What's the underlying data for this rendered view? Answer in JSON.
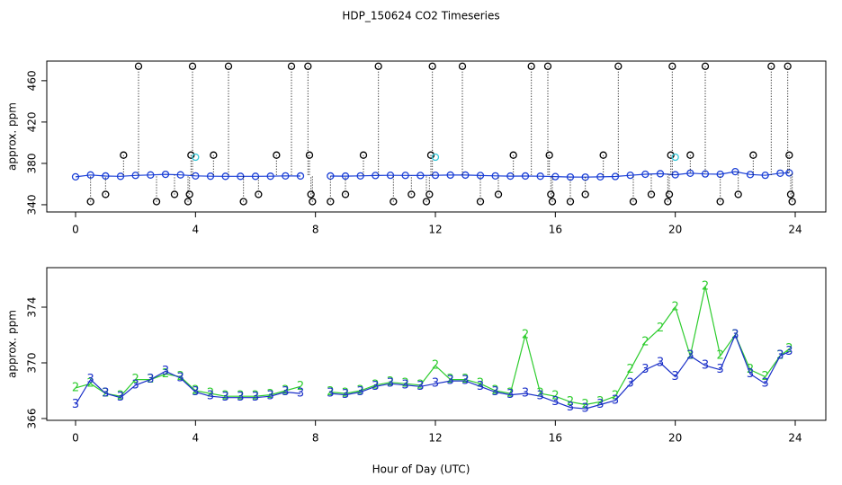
{
  "chart_data": [
    {
      "type": "scatter",
      "title": "HDP_150624  CO2 Timeseries",
      "ylabel": "approx. ppm",
      "xlim": [
        -0.96,
        25.02
      ],
      "ylim": [
        333,
        479
      ],
      "xticks": [
        0,
        4,
        8,
        12,
        16,
        20,
        24
      ],
      "yticks": [
        340,
        380,
        420,
        460
      ],
      "series": [
        {
          "color": "#1a3fd6",
          "style": "line",
          "x": [
            0,
            0.5,
            1,
            1.5,
            2,
            2.5,
            3,
            3.5,
            4,
            4.5,
            5,
            5.5,
            6,
            6.5,
            7,
            7.5,
            8,
            8.5,
            9,
            9.5,
            10,
            10.5,
            11,
            11.5,
            12,
            12.5,
            13,
            13.5,
            14,
            14.5,
            15,
            15.5,
            16,
            16.5,
            17,
            17.5,
            18,
            18.5,
            19,
            19.5,
            20,
            20.5,
            21,
            21.5,
            22,
            22.5,
            23,
            23.5,
            23.8
          ],
          "values": [
            367,
            368.8,
            367.8,
            367.5,
            368.4,
            368.8,
            369.4,
            368.9,
            367.9,
            367.6,
            367.5,
            367.5,
            367.5,
            367.6,
            367.9,
            367.8,
            null,
            367.8,
            367.7,
            367.9,
            368.3,
            368.5,
            368.4,
            368.3,
            368.5,
            368.7,
            368.7,
            368.3,
            367.9,
            367.7,
            367.8,
            367.6,
            367.2,
            366.8,
            366.7,
            367,
            367.3,
            368.5,
            369.5,
            370,
            369,
            370.5,
            369.8,
            369.5,
            372,
            369.2,
            368.5,
            370.5,
            370.8
          ]
        },
        {
          "color": "#000000",
          "style": "drop",
          "x": [
            0.5,
            1,
            1.6,
            2.1,
            2.7,
            3.3,
            3.75,
            3.8,
            3.85,
            3.9,
            4.6,
            5.1,
            5.6,
            6.1,
            6.7,
            7.2,
            7.75,
            7.8,
            7.85,
            7.9,
            8.5,
            9,
            9.6,
            10.1,
            10.6,
            11.2,
            11.7,
            11.8,
            11.85,
            11.9,
            12.9,
            13.5,
            14.1,
            14.6,
            15.2,
            15.75,
            15.8,
            15.85,
            15.9,
            16.5,
            17,
            17.6,
            18.1,
            18.6,
            19.2,
            19.75,
            19.8,
            19.85,
            19.9,
            20.5,
            21,
            21.5,
            22.1,
            22.6,
            23.2,
            23.75,
            23.8,
            23.85,
            23.9
          ],
          "values": [
            343,
            350,
            388,
            474,
            343,
            350,
            343,
            350,
            388,
            474,
            388,
            474,
            343,
            350,
            388,
            474,
            474,
            388,
            350,
            343,
            343,
            350,
            388,
            474,
            343,
            350,
            343,
            350,
            388,
            474,
            474,
            343,
            350,
            388,
            474,
            474,
            388,
            350,
            343,
            343,
            350,
            388,
            474,
            343,
            350,
            343,
            350,
            388,
            474,
            388,
            474,
            343,
            350,
            388,
            474,
            474,
            388,
            350,
            343
          ]
        },
        {
          "color": "#35c8d8",
          "style": "points",
          "x": [
            4,
            12,
            20
          ],
          "values": [
            386,
            386,
            386
          ]
        }
      ]
    },
    {
      "type": "line",
      "ylabel": "approx. ppm",
      "xlabel": "Hour of Day (UTC)",
      "xlim": [
        -0.96,
        25.02
      ],
      "ylim": [
        365.87,
        376.84
      ],
      "xticks": [
        0,
        4,
        8,
        12,
        16,
        20,
        24
      ],
      "yticks": [
        366,
        370,
        374
      ],
      "series": [
        {
          "color": "#2ecc2e",
          "marker": "2",
          "x": [
            0,
            0.5,
            1,
            1.5,
            2,
            2.5,
            3,
            3.5,
            4,
            4.5,
            5,
            5.5,
            6,
            6.5,
            7,
            7.5,
            8,
            8.5,
            9,
            9.5,
            10,
            10.5,
            11,
            11.5,
            12,
            12.5,
            13,
            13.5,
            14,
            14.5,
            15,
            15.5,
            16,
            16.5,
            17,
            17.5,
            18,
            18.5,
            19,
            19.5,
            20,
            20.5,
            21,
            21.5,
            22,
            22.5,
            23,
            23.5,
            23.8
          ],
          "values": [
            368.2,
            368.5,
            367.8,
            367.6,
            368.8,
            368.8,
            369.2,
            369,
            368,
            367.8,
            367.6,
            367.6,
            367.6,
            367.7,
            368,
            368.3,
            null,
            367.9,
            367.8,
            368,
            368.4,
            368.6,
            368.5,
            368.4,
            369.8,
            368.8,
            368.8,
            368.5,
            368,
            367.8,
            372,
            367.8,
            367.6,
            367.2,
            367,
            367.2,
            367.6,
            369.5,
            371.5,
            372.5,
            374,
            370.5,
            375.5,
            370.5,
            372,
            369.5,
            369,
            370.5,
            371
          ]
        },
        {
          "color": "#1a2fc8",
          "marker": "3",
          "x": [
            0,
            0.5,
            1,
            1.5,
            2,
            2.5,
            3,
            3.5,
            4,
            4.5,
            5,
            5.5,
            6,
            6.5,
            7,
            7.5,
            8,
            8.5,
            9,
            9.5,
            10,
            10.5,
            11,
            11.5,
            12,
            12.5,
            13,
            13.5,
            14,
            14.5,
            15,
            15.5,
            16,
            16.5,
            17,
            17.5,
            18,
            18.5,
            19,
            19.5,
            20,
            20.5,
            21,
            21.5,
            22,
            22.5,
            23,
            23.5,
            23.8
          ],
          "values": [
            367,
            368.8,
            367.8,
            367.5,
            368.4,
            368.8,
            369.4,
            368.9,
            367.9,
            367.6,
            367.5,
            367.5,
            367.5,
            367.6,
            367.9,
            367.8,
            null,
            367.8,
            367.7,
            367.9,
            368.3,
            368.5,
            368.4,
            368.3,
            368.5,
            368.7,
            368.7,
            368.3,
            367.9,
            367.7,
            367.8,
            367.6,
            367.2,
            366.8,
            366.7,
            367,
            367.3,
            368.5,
            369.5,
            370,
            369,
            370.5,
            369.8,
            369.5,
            372,
            369.2,
            368.5,
            370.5,
            370.8
          ]
        }
      ]
    }
  ]
}
